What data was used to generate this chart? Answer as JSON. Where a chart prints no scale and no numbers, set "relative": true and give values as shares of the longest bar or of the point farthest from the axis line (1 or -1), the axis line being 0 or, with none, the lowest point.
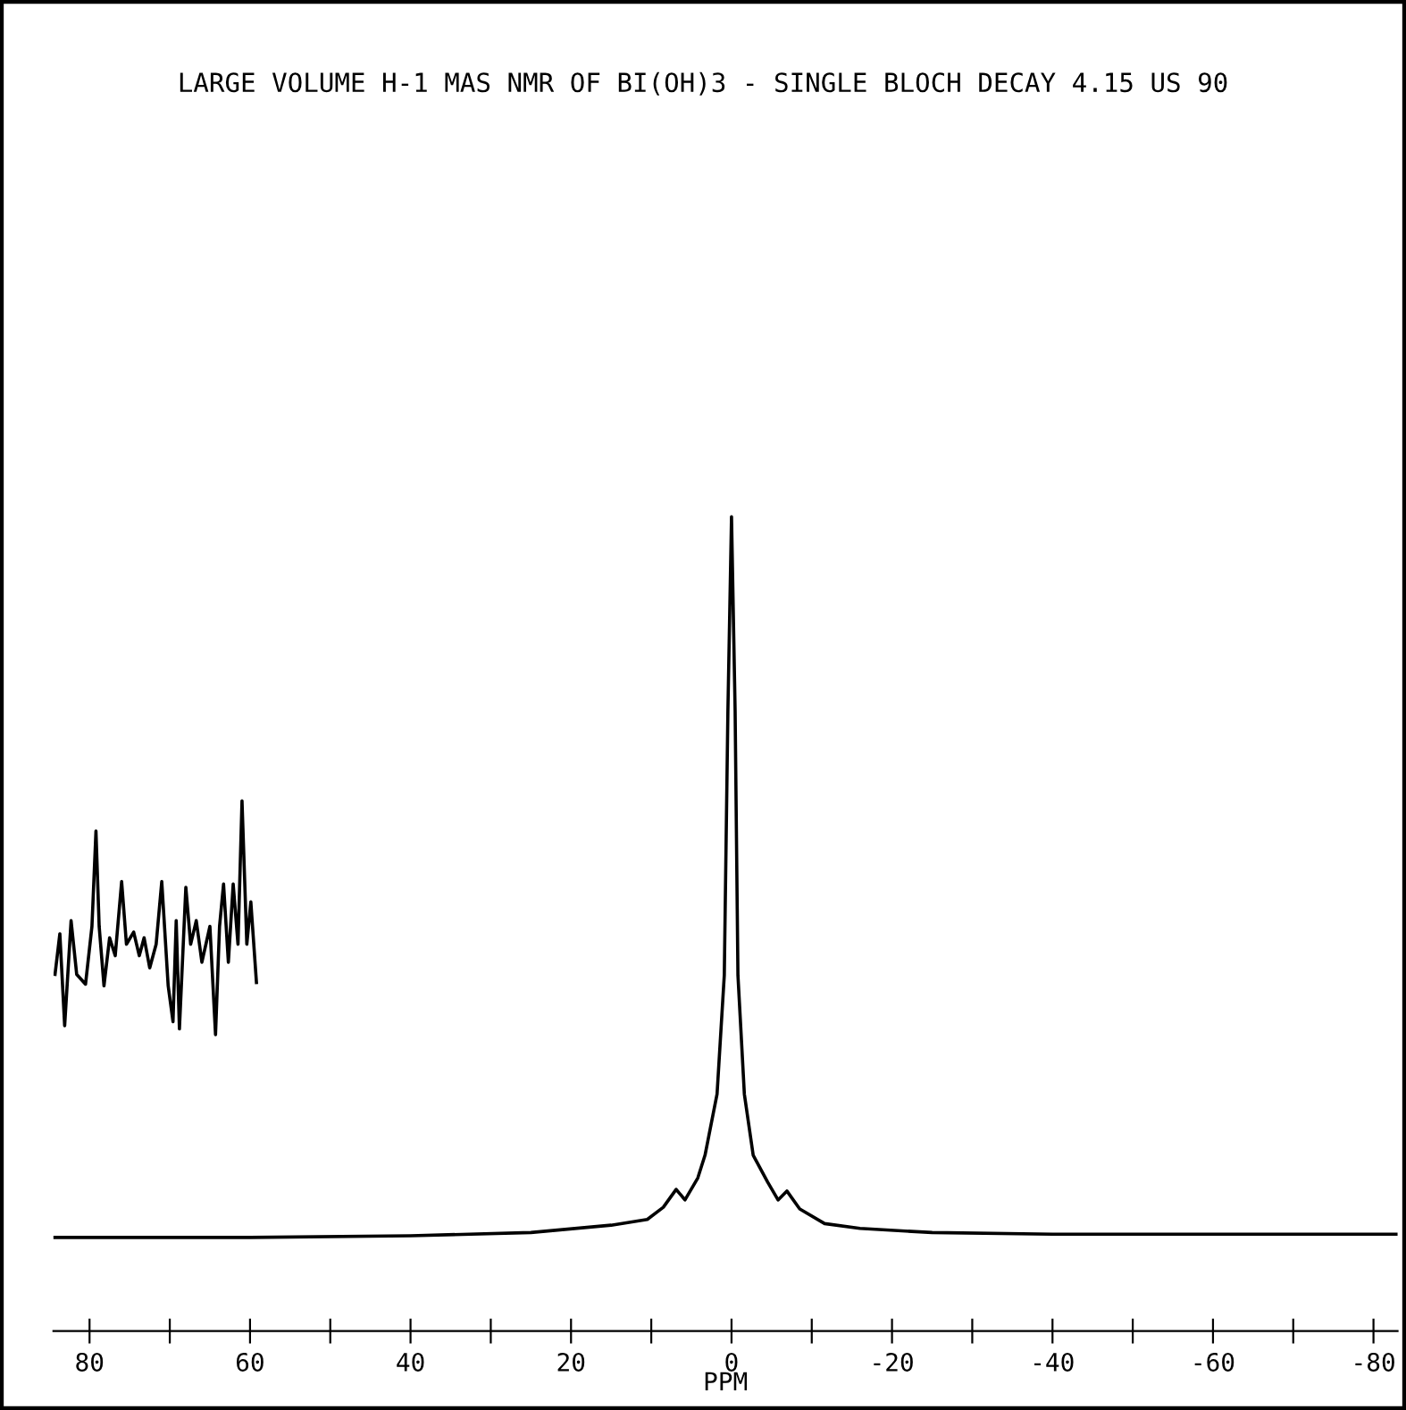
{
  "chart_data": {
    "type": "line",
    "title": "LARGE VOLUME H-1 MAS NMR OF BI(OH)3 - SINGLE BLOCH DECAY 4.15 US 90",
    "xlabel": "PPM",
    "relative": true,
    "xlim": [
      84.5,
      -83
    ],
    "xticks": [
      80,
      {
        "value": 70,
        "label": null
      },
      60,
      {
        "value": 50,
        "label": null
      },
      40,
      {
        "value": 30,
        "label": null
      },
      20,
      {
        "value": 10,
        "label": null
      },
      0,
      {
        "value": -10,
        "label": null
      },
      -20,
      {
        "value": -30,
        "label": null
      },
      -40,
      {
        "value": -50,
        "label": null
      },
      -60,
      {
        "value": -70,
        "label": null
      },
      -80
    ],
    "tick_labels": "x",
    "grid": false,
    "legend": false,
    "series": [
      {
        "color": "#000000",
        "x": [
          84.5,
          60,
          40,
          25,
          15,
          10.5,
          8.5,
          6.9,
          5.8,
          4.2,
          3.3,
          1.8,
          0.9,
          0.45,
          0,
          -0.45,
          -0.8,
          -1.6,
          -2.7,
          -4.5,
          -5.8,
          -6.9,
          -8.5,
          -11.6,
          -16,
          -25,
          -40,
          -60,
          -83
        ],
        "values": [
          0.115,
          0.115,
          0.117,
          0.121,
          0.13,
          0.137,
          0.152,
          0.174,
          0.161,
          0.188,
          0.216,
          0.291,
          0.437,
          0.762,
          1,
          0.762,
          0.437,
          0.291,
          0.216,
          0.183,
          0.161,
          0.172,
          0.15,
          0.132,
          0.126,
          0.121,
          0.119,
          0.119,
          0.119
        ]
      },
      {
        "color": "#000000",
        "x": [
          84.3,
          83.7,
          83.1,
          82.3,
          81.6,
          80.5,
          79.7,
          79.2,
          78.8,
          78.2,
          77.5,
          76.8,
          76.0,
          75.4,
          74.5,
          73.8,
          73.2,
          72.5,
          71.7,
          71.0,
          70.2,
          69.6,
          69.2,
          68.8,
          68.0,
          67.4,
          66.7,
          66.0,
          65.0,
          64.3,
          63.8,
          63.3,
          62.7,
          62.1,
          61.5,
          61.0,
          60.4,
          59.9,
          59.2
        ],
        "values": [
          0.438,
          0.488,
          0.375,
          0.504,
          0.438,
          0.426,
          0.497,
          0.614,
          0.497,
          0.424,
          0.483,
          0.461,
          0.552,
          0.475,
          0.49,
          0.461,
          0.483,
          0.446,
          0.475,
          0.552,
          0.424,
          0.38,
          0.504,
          0.371,
          0.545,
          0.475,
          0.504,
          0.453,
          0.497,
          0.364,
          0.497,
          0.549,
          0.453,
          0.549,
          0.475,
          0.651,
          0.475,
          0.527,
          0.428
        ]
      }
    ]
  }
}
